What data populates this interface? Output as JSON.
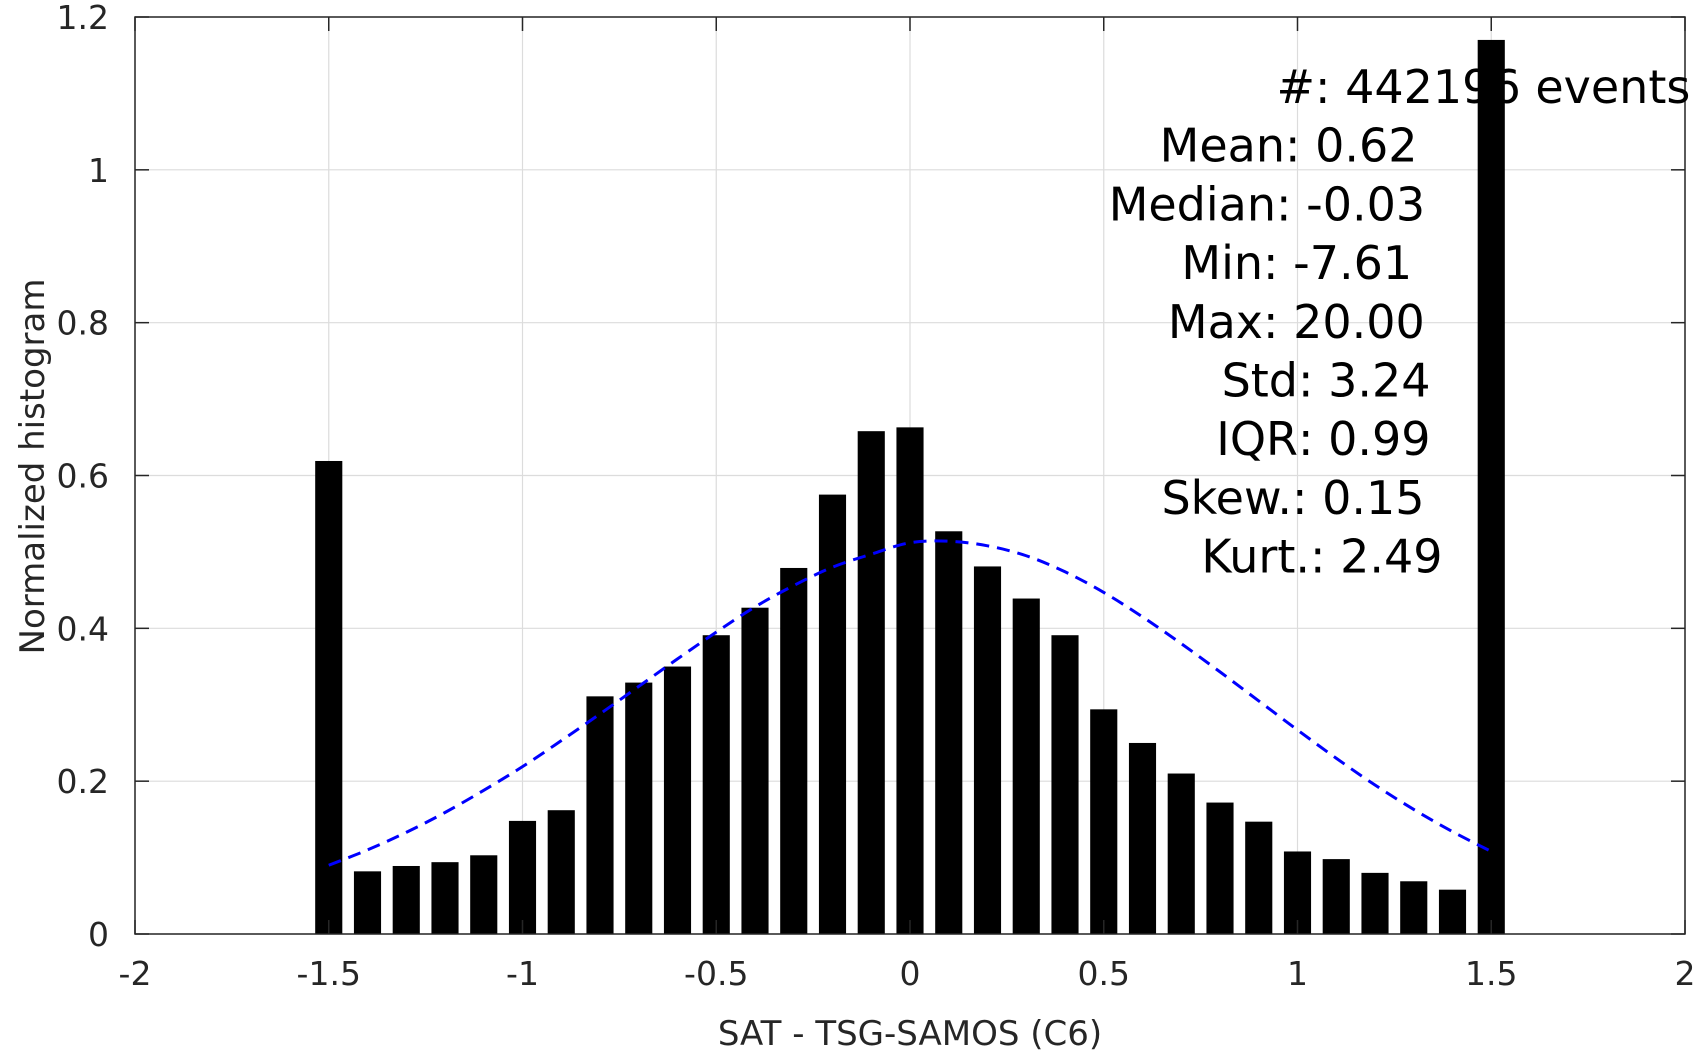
{
  "chart_data": {
    "type": "bar",
    "xlabel": "SAT - TSG-SAMOS (C6)",
    "ylabel": "Normalized histogram",
    "xlim": [
      -2,
      2
    ],
    "ylim": [
      0,
      1.2
    ],
    "xticks": [
      -2,
      -1.5,
      -1,
      -0.5,
      0,
      0.5,
      1,
      1.5,
      2
    ],
    "xtick_labels": [
      "-2",
      "-1.5",
      "-1",
      "-0.5",
      "0",
      "0.5",
      "1",
      "1.5",
      "2"
    ],
    "yticks": [
      0,
      0.2,
      0.4,
      0.6,
      0.8,
      1,
      1.2
    ],
    "ytick_labels": [
      "0",
      "0.2",
      "0.4",
      "0.6",
      "0.8",
      "1",
      "1.2"
    ],
    "grid": true,
    "bar_color": "#000000",
    "bar_width": 0.07,
    "bars": {
      "x": [
        -1.5,
        -1.4,
        -1.3,
        -1.2,
        -1.1,
        -1.0,
        -0.9,
        -0.8,
        -0.7,
        -0.6,
        -0.5,
        -0.4,
        -0.3,
        -0.2,
        -0.1,
        0.0,
        0.1,
        0.2,
        0.3,
        0.4,
        0.5,
        0.6,
        0.7,
        0.8,
        0.9,
        1.0,
        1.1,
        1.2,
        1.3,
        1.4,
        1.5
      ],
      "values": [
        0.619,
        0.082,
        0.089,
        0.094,
        0.103,
        0.148,
        0.162,
        0.311,
        0.329,
        0.35,
        0.391,
        0.427,
        0.479,
        0.575,
        0.658,
        0.663,
        0.527,
        0.481,
        0.439,
        0.391,
        0.294,
        0.25,
        0.21,
        0.172,
        0.147,
        0.108,
        0.098,
        0.08,
        0.069,
        0.058,
        1.17
      ]
    },
    "fit_curve": {
      "style": "dashed",
      "color": "#0000ff",
      "x": [
        -1.5,
        -1.4,
        -1.3,
        -1.2,
        -1.1,
        -1.0,
        -0.9,
        -0.8,
        -0.7,
        -0.6,
        -0.5,
        -0.4,
        -0.3,
        -0.2,
        -0.1,
        0.0,
        0.1,
        0.2,
        0.3,
        0.4,
        0.5,
        0.6,
        0.7,
        0.8,
        0.9,
        1.0,
        1.1,
        1.2,
        1.3,
        1.4,
        1.5
      ],
      "values": [
        0.09,
        0.11,
        0.133,
        0.159,
        0.188,
        0.219,
        0.253,
        0.288,
        0.324,
        0.36,
        0.395,
        0.428,
        0.456,
        0.48,
        0.497,
        0.512,
        0.514,
        0.508,
        0.495,
        0.474,
        0.447,
        0.415,
        0.38,
        0.343,
        0.305,
        0.267,
        0.23,
        0.195,
        0.163,
        0.134,
        0.108
      ]
    },
    "annotations": [
      {
        "label": "#",
        "value": ": 442196 events"
      },
      {
        "label": "Mean",
        "value": ": 0.62"
      },
      {
        "label": "Median",
        "value": ": -0.03"
      },
      {
        "label": "Min",
        "value": ": -7.61"
      },
      {
        "label": "Max",
        "value": ": 20.00"
      },
      {
        "label": "Std",
        "value": ": 3.24"
      },
      {
        "label": "IQR",
        "value": ": 0.99"
      },
      {
        "label": "Skew.",
        "value": ": 0.15"
      },
      {
        "label": "Kurt.",
        "value": ": 2.49"
      }
    ]
  }
}
